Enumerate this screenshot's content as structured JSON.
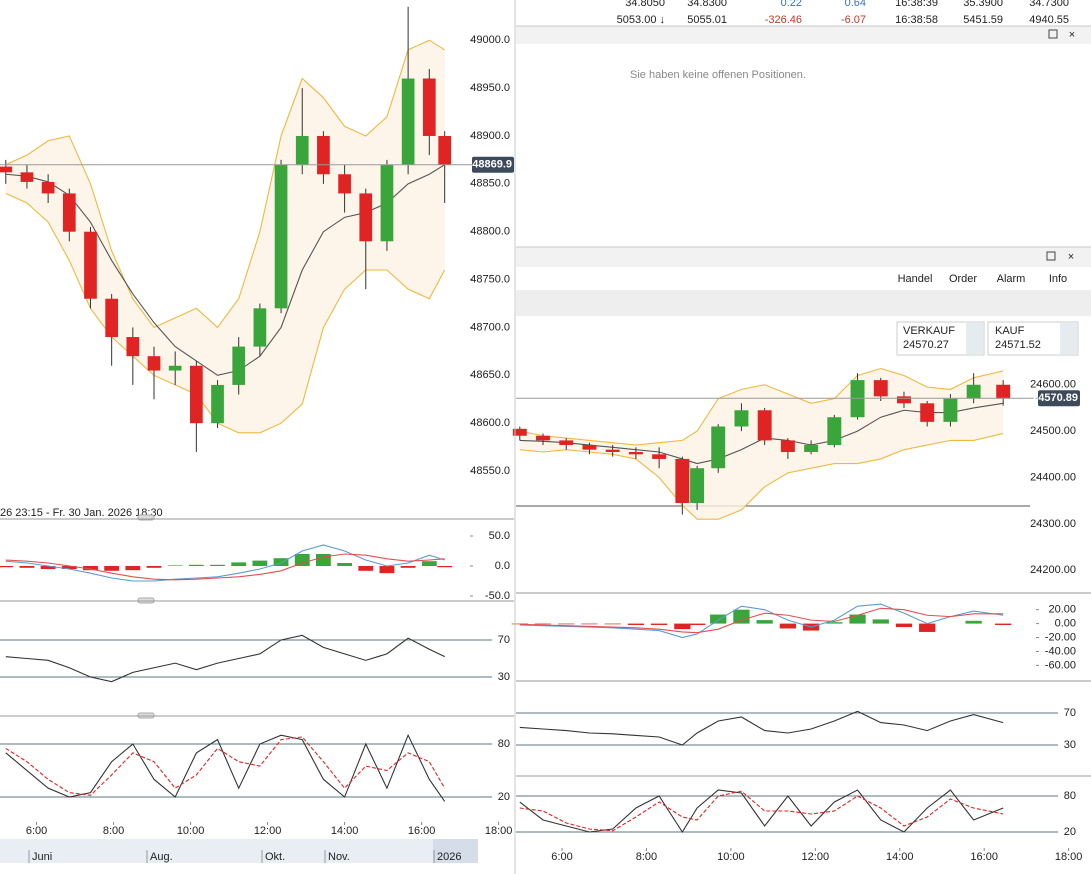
{
  "top_table": {
    "rows": [
      [
        "34.8050",
        "34.8300",
        "0.22",
        "0.64",
        "16:38:39",
        "35.3900",
        "34.7300"
      ],
      [
        "5053.00 ↓",
        "5055.01",
        "-326.46",
        "-6.07",
        "16:38:58",
        "5451.59",
        "4940.55"
      ]
    ]
  },
  "positions_panel": {
    "message": "Sie haben keine offenen Positionen."
  },
  "trade_panel": {
    "tabs": [
      "Handel",
      "Order",
      "Alarm",
      "Info"
    ],
    "sell": {
      "label": "VERKAUF",
      "price": "24570.27"
    },
    "buy": {
      "label": "KAUF",
      "price": "24571.52"
    }
  },
  "left_range": "26 23:15 - Fr. 30 Jan. 2026 18:30",
  "navigator": [
    "Juni",
    "Aug.",
    "Okt.",
    "Nov.",
    "2026"
  ],
  "chart_data": [
    {
      "type": "candlestick",
      "x": [
        5.2,
        5.75,
        6.3,
        6.85,
        7.4,
        7.95,
        8.5,
        9.05,
        9.6,
        10.15,
        10.7,
        11.25,
        11.8,
        12.35,
        12.9,
        13.45,
        14.0,
        14.55,
        15.1,
        15.65,
        16.2,
        16.6
      ],
      "xlim": [
        5.05,
        18.4
      ],
      "open": [
        48868,
        48862,
        48852,
        48840,
        48800,
        48730,
        48690,
        48670,
        48655,
        48660,
        48600,
        48640,
        48680,
        48720,
        48870,
        48900,
        48860,
        48840,
        48790,
        48870,
        48960,
        48900
      ],
      "high": [
        48875,
        48870,
        48860,
        48845,
        48805,
        48735,
        48700,
        48680,
        48675,
        48665,
        48645,
        48690,
        48725,
        48875,
        48950,
        48905,
        48870,
        48845,
        48875,
        49035,
        48970,
        48905
      ],
      "low": [
        48850,
        48845,
        48830,
        48790,
        48720,
        48660,
        48640,
        48625,
        48640,
        48570,
        48595,
        48630,
        48670,
        48715,
        48860,
        48850,
        48820,
        48740,
        48780,
        48860,
        48880,
        48830
      ],
      "close": [
        48862,
        48852,
        48840,
        48800,
        48730,
        48690,
        48670,
        48655,
        48660,
        48600,
        48640,
        48680,
        48720,
        48870,
        48900,
        48860,
        48840,
        48790,
        48870,
        48960,
        48900,
        48870
      ],
      "upper": [
        48870,
        48880,
        48895,
        48900,
        48850,
        48780,
        48730,
        48700,
        48710,
        48720,
        48700,
        48730,
        48800,
        48900,
        48960,
        48940,
        48910,
        48900,
        48920,
        48990,
        49000,
        48990
      ],
      "middle": [
        48860,
        48858,
        48852,
        48838,
        48810,
        48770,
        48735,
        48705,
        48680,
        48665,
        48650,
        48655,
        48670,
        48700,
        48760,
        48800,
        48815,
        48820,
        48830,
        48850,
        48860,
        48870
      ],
      "lower": [
        48840,
        48830,
        48810,
        48770,
        48720,
        48690,
        48670,
        48650,
        48640,
        48630,
        48600,
        48590,
        48590,
        48600,
        48620,
        48700,
        48740,
        48760,
        48760,
        48740,
        48730,
        48760
      ],
      "up_color": "#3aa53a",
      "down_color": "#e02424",
      "band_color": "#f0b840",
      "middle_color": "#555555",
      "last": 48869.9,
      "ylim": [
        48501,
        49042
      ],
      "yticks": [
        {
          "value": 48550,
          "label": "48550.0"
        },
        {
          "value": 48600,
          "label": "48600.0"
        },
        {
          "value": 48650,
          "label": "48650.0"
        },
        {
          "value": 48700,
          "label": "48700.0"
        },
        {
          "value": 48750,
          "label": "48750.0"
        },
        {
          "value": 48800,
          "label": "48800.0"
        },
        {
          "value": 48850,
          "label": "48850.0"
        },
        {
          "value": 48900,
          "label": "48900.0"
        },
        {
          "value": 48950,
          "label": "48950.0"
        },
        {
          "value": 49000,
          "label": "49000.0"
        }
      ]
    },
    {
      "type": "line",
      "x": [
        5.2,
        5.75,
        6.3,
        6.85,
        7.4,
        7.95,
        8.5,
        9.05,
        9.6,
        10.15,
        10.7,
        11.25,
        11.8,
        12.35,
        12.9,
        13.45,
        14.0,
        14.55,
        15.1,
        15.65,
        16.2,
        16.6
      ],
      "xlim": [
        5.05,
        18.4
      ],
      "ylim": [
        -56.7,
        76.7
      ],
      "yticks": [
        {
          "value": 50,
          "label": "50.0"
        },
        {
          "value": 0,
          "label": "0.0"
        },
        {
          "value": -50,
          "label": "-50.0"
        }
      ],
      "grid": false,
      "series": [
        {
          "style": "histogram",
          "up_color": "#3aa53a",
          "down_color": "#e02424",
          "values": [
            -2,
            -3,
            -5,
            -5,
            -7,
            -8,
            -7,
            -3,
            1,
            2,
            2,
            6,
            9,
            13,
            20,
            20,
            5,
            -8,
            -12,
            -3,
            8,
            -2
          ]
        },
        {
          "style": "line",
          "color": "#5b9bd5",
          "values": [
            8,
            5,
            0,
            -5,
            -12,
            -20,
            -25,
            -25,
            -22,
            -20,
            -18,
            -12,
            -5,
            5,
            25,
            35,
            25,
            10,
            0,
            5,
            18,
            10
          ]
        },
        {
          "style": "line",
          "color": "#e05050",
          "values": [
            10,
            8,
            5,
            0,
            -5,
            -12,
            -18,
            -22,
            -23,
            -22,
            -20,
            -18,
            -14,
            -8,
            5,
            15,
            20,
            18,
            12,
            8,
            10,
            12
          ]
        }
      ]
    },
    {
      "type": "line",
      "x": [
        5.2,
        5.75,
        6.3,
        6.85,
        7.4,
        7.95,
        8.5,
        9.05,
        9.6,
        10.15,
        10.7,
        11.25,
        11.8,
        12.35,
        12.9,
        13.45,
        14.0,
        14.55,
        15.1,
        15.65,
        16.2,
        16.6
      ],
      "xlim": [
        5.05,
        18.4
      ],
      "ylim": [
        -11,
        111
      ],
      "yticks": [
        30,
        70
      ],
      "grid": true,
      "series": [
        {
          "style": "line",
          "color": "#333333",
          "values": [
            52,
            50,
            48,
            40,
            30,
            25,
            35,
            40,
            45,
            38,
            45,
            50,
            55,
            70,
            75,
            62,
            55,
            48,
            55,
            72,
            60,
            52
          ]
        }
      ]
    },
    {
      "type": "line",
      "x": [
        5.2,
        5.75,
        6.3,
        6.85,
        7.4,
        7.95,
        8.5,
        9.05,
        9.6,
        10.15,
        10.7,
        11.25,
        11.8,
        12.35,
        12.9,
        13.45,
        14.0,
        14.55,
        15.1,
        15.65,
        16.2,
        16.6
      ],
      "xlim": [
        5.05,
        18.4
      ],
      "ylim": [
        -26.4,
        110.6
      ],
      "yticks": [
        20,
        80
      ],
      "grid": true,
      "xticks": [
        {
          "value": 6,
          "label": "6:00"
        },
        {
          "value": 8,
          "label": "8:00"
        },
        {
          "value": 10,
          "label": "10:00"
        },
        {
          "value": 12,
          "label": "12:00"
        },
        {
          "value": 14,
          "label": "14:00"
        },
        {
          "value": 16,
          "label": "16:00"
        },
        {
          "value": 18,
          "label": "18:00"
        }
      ],
      "series": [
        {
          "style": "line",
          "color": "#333333",
          "values": [
            70,
            50,
            30,
            20,
            25,
            60,
            80,
            40,
            20,
            70,
            85,
            30,
            80,
            90,
            85,
            40,
            20,
            80,
            30,
            90,
            40,
            15
          ]
        },
        {
          "style": "dashed",
          "color": "#e02424",
          "values": [
            75,
            60,
            40,
            25,
            22,
            45,
            70,
            60,
            30,
            45,
            75,
            60,
            55,
            85,
            88,
            60,
            30,
            55,
            50,
            70,
            60,
            30
          ]
        }
      ]
    },
    {
      "type": "candlestick",
      "x": [
        5.0,
        5.55,
        6.1,
        6.65,
        7.2,
        7.75,
        8.3,
        8.85,
        9.2,
        9.7,
        10.25,
        10.8,
        11.35,
        11.9,
        12.45,
        13.0,
        13.55,
        14.1,
        14.65,
        15.2,
        15.75,
        16.45
      ],
      "xlim": [
        4.91,
        18.53
      ],
      "open": [
        24505,
        24490,
        24480,
        24470,
        24460,
        24455,
        24450,
        24440,
        24345,
        24420,
        24510,
        24545,
        24480,
        24455,
        24470,
        24530,
        24610,
        24575,
        24560,
        24520,
        24570,
        24600
      ],
      "high": [
        24510,
        24495,
        24485,
        24475,
        24470,
        24465,
        24465,
        24445,
        24425,
        24515,
        24560,
        24550,
        24485,
        24480,
        24535,
        24625,
        24615,
        24585,
        24565,
        24580,
        24625,
        24610
      ],
      "low": [
        24480,
        24470,
        24460,
        24450,
        24445,
        24440,
        24420,
        24320,
        24330,
        24410,
        24500,
        24470,
        24440,
        24450,
        24465,
        24525,
        24565,
        24550,
        24510,
        24510,
        24560,
        24555
      ],
      "close": [
        24490,
        24480,
        24470,
        24460,
        24455,
        24450,
        24440,
        24345,
        24420,
        24510,
        24545,
        24480,
        24455,
        24470,
        24530,
        24610,
        24575,
        24560,
        24520,
        24570,
        24600,
        24570
      ],
      "upper": [
        24500,
        24490,
        24485,
        24480,
        24475,
        24470,
        24475,
        24480,
        24500,
        24570,
        24590,
        24600,
        24580,
        24560,
        24570,
        24620,
        24635,
        24620,
        24595,
        24590,
        24615,
        24630
      ],
      "middle": [
        24480,
        24478,
        24475,
        24470,
        24465,
        24460,
        24455,
        24440,
        24430,
        24440,
        24460,
        24485,
        24480,
        24470,
        24480,
        24500,
        24530,
        24545,
        24540,
        24540,
        24550,
        24560
      ],
      "lower": [
        24460,
        24455,
        24460,
        24455,
        24450,
        24440,
        24400,
        24340,
        24310,
        24310,
        24330,
        24380,
        24410,
        24420,
        24430,
        24430,
        24440,
        24460,
        24470,
        24480,
        24480,
        24495
      ],
      "up_color": "#3aa53a",
      "down_color": "#e02424",
      "band_color": "#f0b840",
      "middle_color": "#555555",
      "last": 24570.89,
      "ylim": [
        24153,
        24744
      ],
      "yticks": [
        {
          "value": 24200,
          "label": "24200.00"
        },
        {
          "value": 24300,
          "label": "24300.00"
        },
        {
          "value": 24400,
          "label": "24400.00"
        },
        {
          "value": 24500,
          "label": "24500.00"
        },
        {
          "value": 24600,
          "label": "24600.00"
        }
      ]
    },
    {
      "type": "line",
      "x": [
        5.0,
        5.55,
        6.1,
        6.65,
        7.2,
        7.75,
        8.3,
        8.85,
        9.2,
        9.7,
        10.25,
        10.8,
        11.35,
        11.9,
        12.45,
        13.0,
        13.55,
        14.1,
        14.65,
        15.2,
        15.75,
        16.45
      ],
      "xlim": [
        4.91,
        18.53
      ],
      "ylim": [
        -81,
        42.5
      ],
      "yticks": [
        {
          "value": 20,
          "label": "20.00"
        },
        {
          "value": 0,
          "label": "0.00"
        },
        {
          "value": -20,
          "label": "-20.00"
        },
        {
          "value": -40,
          "label": "-40.00"
        },
        {
          "value": -60,
          "label": "-60.00"
        }
      ],
      "grid": false,
      "series": [
        {
          "style": "histogram",
          "up_color": "#3aa53a",
          "down_color": "#e02424",
          "values": [
            -1,
            -1,
            -1,
            -1,
            -1,
            -2,
            -2,
            -8,
            -2,
            13,
            20,
            5,
            -7,
            -10,
            2,
            13,
            6,
            -5,
            -12,
            0,
            4,
            -2
          ]
        },
        {
          "style": "line",
          "color": "#5b9bd5",
          "values": [
            -2,
            -3,
            -4,
            -5,
            -6,
            -8,
            -10,
            -20,
            -15,
            5,
            25,
            20,
            5,
            -5,
            5,
            25,
            28,
            15,
            0,
            10,
            18,
            12
          ]
        },
        {
          "style": "line",
          "color": "#e05050",
          "values": [
            -1,
            -2,
            -3,
            -4,
            -5,
            -6,
            -8,
            -12,
            -13,
            -8,
            5,
            15,
            12,
            5,
            3,
            12,
            22,
            20,
            12,
            10,
            14,
            14
          ]
        }
      ]
    },
    {
      "type": "line",
      "x": [
        5.0,
        5.55,
        6.1,
        6.65,
        7.2,
        7.75,
        8.3,
        8.85,
        9.2,
        9.7,
        10.25,
        10.8,
        11.35,
        11.9,
        12.45,
        13.0,
        13.55,
        14.1,
        14.65,
        15.2,
        15.75,
        16.45
      ],
      "xlim": [
        4.91,
        18.53
      ],
      "ylim": [
        -7.5,
        108.75
      ],
      "yticks": [
        30,
        70
      ],
      "grid": true,
      "series": [
        {
          "style": "line",
          "color": "#333333",
          "values": [
            52,
            50,
            48,
            45,
            44,
            42,
            40,
            30,
            45,
            60,
            65,
            48,
            45,
            50,
            60,
            72,
            58,
            55,
            48,
            60,
            68,
            58
          ]
        }
      ]
    },
    {
      "type": "line",
      "x": [
        5.0,
        5.55,
        6.1,
        6.65,
        7.2,
        7.75,
        8.3,
        8.85,
        9.2,
        9.7,
        10.25,
        10.8,
        11.35,
        11.9,
        12.45,
        13.0,
        13.55,
        14.1,
        14.65,
        15.2,
        15.75,
        16.45
      ],
      "xlim": [
        4.91,
        18.53
      ],
      "ylim": [
        -1.7,
        111.7
      ],
      "yticks": [
        20,
        80
      ],
      "grid": true,
      "xticks": [
        {
          "value": 6,
          "label": "6:00"
        },
        {
          "value": 8,
          "label": "8:00"
        },
        {
          "value": 10,
          "label": "10:00"
        },
        {
          "value": 12,
          "label": "12:00"
        },
        {
          "value": 14,
          "label": "14:00"
        },
        {
          "value": 16,
          "label": "16:00"
        },
        {
          "value": 18,
          "label": "18:00"
        }
      ],
      "series": [
        {
          "style": "line",
          "color": "#333333",
          "values": [
            70,
            40,
            30,
            20,
            25,
            60,
            80,
            20,
            60,
            90,
            85,
            30,
            80,
            30,
            70,
            90,
            40,
            20,
            60,
            90,
            40,
            60
          ]
        },
        {
          "style": "dashed",
          "color": "#e02424",
          "values": [
            60,
            55,
            35,
            25,
            22,
            45,
            70,
            45,
            40,
            80,
            88,
            55,
            55,
            50,
            55,
            80,
            60,
            30,
            45,
            75,
            60,
            50
          ]
        }
      ]
    }
  ]
}
